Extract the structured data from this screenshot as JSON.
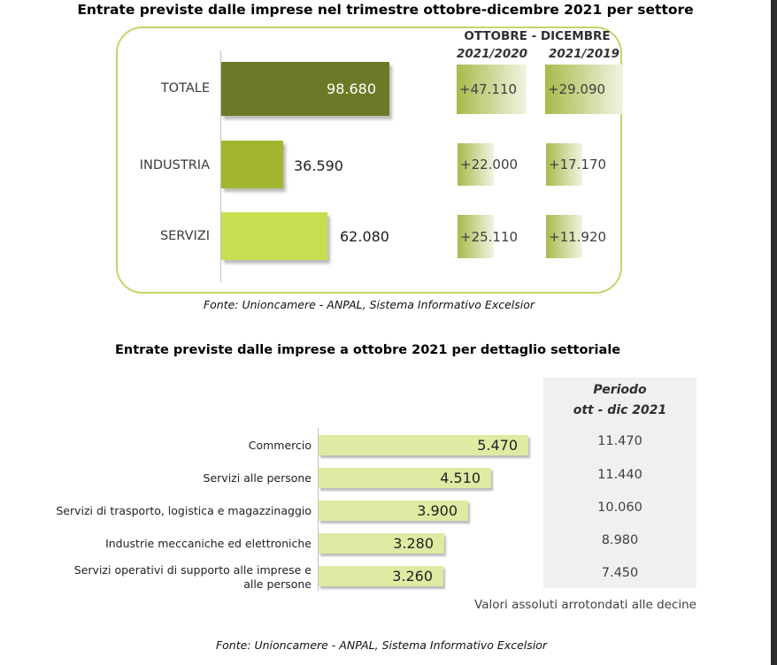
{
  "colors": {
    "accent_border": "#c2d569",
    "bar_dark": "#6b7a27",
    "bar_medium": "#a3b52f",
    "bar_light": "#c6df51",
    "bar_pale": "#ddeba3",
    "cell_gradient_start": "#a9ba4b",
    "cell_gradient_end": "#f1f4e3",
    "panel_gray": "#f0f0f0"
  },
  "chart_data": [
    {
      "type": "bar",
      "orientation": "horizontal",
      "title": "Entrate previste dalle imprese nel trimestre ottobre-dicembre 2021 per settore",
      "categories": [
        "TOTALE",
        "INDUSTRIA",
        "SERVIZI"
      ],
      "values": [
        98680,
        36590,
        62080
      ],
      "value_labels": [
        "98.680",
        "36.590",
        "62.080"
      ],
      "bar_colors": [
        "#6b7a27",
        "#a3b52f",
        "#c6df51"
      ],
      "comparison": {
        "header": "OTTOBRE - DICEMBRE",
        "columns": [
          "2021/2020",
          "2021/2019"
        ],
        "rows": [
          [
            "+47.110",
            "+29.090"
          ],
          [
            "+22.000",
            "+17.170"
          ],
          [
            "+25.110",
            "+11.920"
          ]
        ]
      },
      "source": "Fonte: Unioncamere - ANPAL, Sistema Informativo Excelsior"
    },
    {
      "type": "bar",
      "orientation": "horizontal",
      "title": "Entrate previste dalle imprese a ottobre 2021 per dettaglio settoriale",
      "categories": [
        "Commercio",
        "Servizi alle persone",
        "Servizi di trasporto, logistica e magazzinaggio",
        "Industrie meccaniche ed elettroniche",
        "Servizi operativi di supporto alle imprese e alle persone"
      ],
      "values": [
        5470,
        4510,
        3900,
        3280,
        3260
      ],
      "value_labels": [
        "5.470",
        "4.510",
        "3.900",
        "3.280",
        "3.260"
      ],
      "bar_color": "#ddeba3",
      "period_column": {
        "header_line1": "Periodo",
        "header_line2": "ott  - dic 2021",
        "values": [
          "11.470",
          "11.440",
          "10.060",
          "8.980",
          "7.450"
        ]
      },
      "note": "Valori assoluti arrotondati alle decine",
      "source": "Fonte: Unioncamere - ANPAL, Sistema Informativo Excelsior"
    }
  ]
}
